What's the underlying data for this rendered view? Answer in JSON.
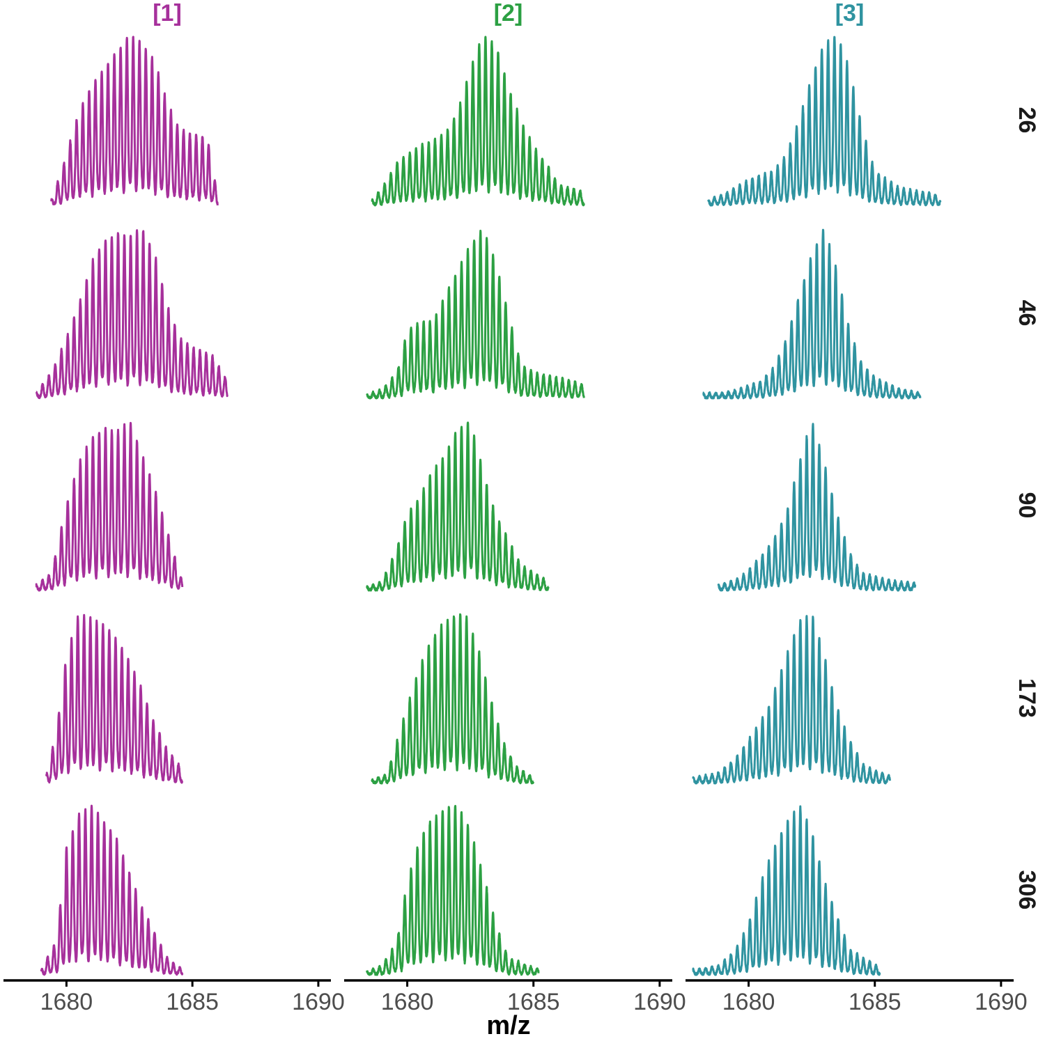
{
  "chart_data": {
    "type": "line",
    "xlabel": "m/z",
    "ylabel": "",
    "xlim": [
      1677.5,
      1690.5
    ],
    "x_ticks": [
      1680,
      1685,
      1690
    ],
    "x_tick_labels": [
      "1680",
      "1685",
      "1690"
    ],
    "grid": false,
    "legend": "none",
    "columns": [
      {
        "label": "[1]",
        "color": "#A6309B"
      },
      {
        "label": "[2]",
        "color": "#2CA043"
      },
      {
        "label": "[3]",
        "color": "#2F93A0"
      }
    ],
    "rows": [
      {
        "label": "26"
      },
      {
        "label": "46"
      },
      {
        "label": "90"
      },
      {
        "label": "173"
      },
      {
        "label": "306"
      }
    ],
    "panels": [
      {
        "column": "[1]",
        "row": "26",
        "x_range": [
          1679.4,
          1686.0
        ],
        "peak_spacing": 0.25,
        "envelope": [
          [
            1679.4,
            0.03
          ],
          [
            1679.8,
            0.2
          ],
          [
            1680.5,
            0.55
          ],
          [
            1681.0,
            0.7
          ],
          [
            1681.5,
            0.8
          ],
          [
            1682.0,
            0.9
          ],
          [
            1682.5,
            1.0
          ],
          [
            1683.0,
            0.95
          ],
          [
            1683.5,
            0.85
          ],
          [
            1684.0,
            0.6
          ],
          [
            1684.5,
            0.45
          ],
          [
            1685.0,
            0.42
          ],
          [
            1685.6,
            0.4
          ],
          [
            1686.0,
            0.05
          ]
        ]
      },
      {
        "column": "[1]",
        "row": "46",
        "x_range": [
          1678.8,
          1686.4
        ],
        "peak_spacing": 0.25,
        "envelope": [
          [
            1678.8,
            0.03
          ],
          [
            1679.4,
            0.15
          ],
          [
            1680.0,
            0.35
          ],
          [
            1680.5,
            0.55
          ],
          [
            1681.0,
            0.8
          ],
          [
            1681.5,
            0.92
          ],
          [
            1682.0,
            0.97
          ],
          [
            1682.5,
            0.95
          ],
          [
            1683.0,
            1.0
          ],
          [
            1683.5,
            0.85
          ],
          [
            1684.0,
            0.55
          ],
          [
            1684.5,
            0.35
          ],
          [
            1685.0,
            0.3
          ],
          [
            1685.8,
            0.25
          ],
          [
            1686.4,
            0.1
          ]
        ]
      },
      {
        "column": "[1]",
        "row": "90",
        "x_range": [
          1678.8,
          1684.6
        ],
        "peak_spacing": 0.25,
        "envelope": [
          [
            1678.8,
            0.03
          ],
          [
            1679.4,
            0.1
          ],
          [
            1680.0,
            0.5
          ],
          [
            1680.5,
            0.75
          ],
          [
            1681.0,
            0.9
          ],
          [
            1681.5,
            0.95
          ],
          [
            1682.0,
            0.93
          ],
          [
            1682.5,
            1.0
          ],
          [
            1683.0,
            0.8
          ],
          [
            1683.5,
            0.6
          ],
          [
            1684.0,
            0.35
          ],
          [
            1684.6,
            0.05
          ]
        ]
      },
      {
        "column": "[1]",
        "row": "173",
        "x_range": [
          1679.2,
          1684.6
        ],
        "peak_spacing": 0.25,
        "envelope": [
          [
            1679.2,
            0.05
          ],
          [
            1679.6,
            0.3
          ],
          [
            1680.0,
            0.75
          ],
          [
            1680.5,
            1.0
          ],
          [
            1681.0,
            0.97
          ],
          [
            1681.5,
            0.93
          ],
          [
            1682.0,
            0.85
          ],
          [
            1682.5,
            0.72
          ],
          [
            1683.0,
            0.55
          ],
          [
            1683.5,
            0.35
          ],
          [
            1684.0,
            0.2
          ],
          [
            1684.6,
            0.08
          ]
        ]
      },
      {
        "column": "[1]",
        "row": "306",
        "x_range": [
          1679.0,
          1684.6
        ],
        "peak_spacing": 0.25,
        "envelope": [
          [
            1679.0,
            0.03
          ],
          [
            1679.6,
            0.2
          ],
          [
            1680.0,
            0.75
          ],
          [
            1680.5,
            0.95
          ],
          [
            1681.0,
            1.0
          ],
          [
            1681.5,
            0.9
          ],
          [
            1682.0,
            0.8
          ],
          [
            1682.5,
            0.6
          ],
          [
            1683.0,
            0.4
          ],
          [
            1683.5,
            0.25
          ],
          [
            1684.0,
            0.1
          ],
          [
            1684.6,
            0.03
          ]
        ]
      },
      {
        "column": "[2]",
        "row": "26",
        "x_range": [
          1678.6,
          1687.0
        ],
        "peak_spacing": 0.25,
        "envelope": [
          [
            1678.6,
            0.03
          ],
          [
            1679.0,
            0.1
          ],
          [
            1679.6,
            0.25
          ],
          [
            1680.0,
            0.3
          ],
          [
            1680.5,
            0.35
          ],
          [
            1681.0,
            0.38
          ],
          [
            1681.5,
            0.42
          ],
          [
            1682.0,
            0.55
          ],
          [
            1682.5,
            0.8
          ],
          [
            1683.0,
            1.0
          ],
          [
            1683.5,
            0.95
          ],
          [
            1684.0,
            0.7
          ],
          [
            1684.5,
            0.5
          ],
          [
            1685.0,
            0.35
          ],
          [
            1685.5,
            0.25
          ],
          [
            1686.0,
            0.12
          ],
          [
            1687.0,
            0.08
          ]
        ]
      },
      {
        "column": "[2]",
        "row": "46",
        "x_range": [
          1678.4,
          1687.0
        ],
        "peak_spacing": 0.25,
        "envelope": [
          [
            1678.4,
            0.02
          ],
          [
            1679.0,
            0.05
          ],
          [
            1679.6,
            0.15
          ],
          [
            1680.0,
            0.4
          ],
          [
            1680.5,
            0.45
          ],
          [
            1681.0,
            0.45
          ],
          [
            1681.5,
            0.6
          ],
          [
            1682.0,
            0.75
          ],
          [
            1682.5,
            0.9
          ],
          [
            1683.0,
            1.0
          ],
          [
            1683.5,
            0.8
          ],
          [
            1684.0,
            0.5
          ],
          [
            1684.5,
            0.2
          ],
          [
            1685.0,
            0.15
          ],
          [
            1686.0,
            0.12
          ],
          [
            1687.0,
            0.08
          ]
        ]
      },
      {
        "column": "[2]",
        "row": "90",
        "x_range": [
          1678.4,
          1685.6
        ],
        "peak_spacing": 0.25,
        "envelope": [
          [
            1678.4,
            0.02
          ],
          [
            1679.0,
            0.05
          ],
          [
            1679.6,
            0.25
          ],
          [
            1680.0,
            0.45
          ],
          [
            1680.5,
            0.55
          ],
          [
            1681.0,
            0.7
          ],
          [
            1681.5,
            0.8
          ],
          [
            1682.0,
            0.95
          ],
          [
            1682.5,
            1.0
          ],
          [
            1683.0,
            0.7
          ],
          [
            1683.5,
            0.45
          ],
          [
            1684.0,
            0.3
          ],
          [
            1684.5,
            0.15
          ],
          [
            1685.6,
            0.05
          ]
        ]
      },
      {
        "column": "[2]",
        "row": "173",
        "x_range": [
          1678.6,
          1685.0
        ],
        "peak_spacing": 0.25,
        "envelope": [
          [
            1678.6,
            0.02
          ],
          [
            1679.2,
            0.05
          ],
          [
            1679.8,
            0.35
          ],
          [
            1680.3,
            0.6
          ],
          [
            1680.8,
            0.8
          ],
          [
            1681.3,
            0.92
          ],
          [
            1681.8,
            0.98
          ],
          [
            1682.3,
            1.0
          ],
          [
            1682.8,
            0.8
          ],
          [
            1683.3,
            0.5
          ],
          [
            1683.8,
            0.25
          ],
          [
            1684.3,
            0.1
          ],
          [
            1685.0,
            0.03
          ]
        ]
      },
      {
        "column": "[2]",
        "row": "306",
        "x_range": [
          1678.4,
          1685.2
        ],
        "peak_spacing": 0.25,
        "envelope": [
          [
            1678.4,
            0.02
          ],
          [
            1679.0,
            0.05
          ],
          [
            1679.6,
            0.2
          ],
          [
            1680.0,
            0.55
          ],
          [
            1680.5,
            0.8
          ],
          [
            1681.0,
            0.92
          ],
          [
            1681.5,
            0.98
          ],
          [
            1682.0,
            1.0
          ],
          [
            1682.5,
            0.85
          ],
          [
            1683.0,
            0.6
          ],
          [
            1683.5,
            0.3
          ],
          [
            1684.0,
            0.1
          ],
          [
            1685.2,
            0.03
          ]
        ]
      },
      {
        "column": "[3]",
        "row": "26",
        "x_range": [
          1678.4,
          1687.6
        ],
        "peak_spacing": 0.25,
        "envelope": [
          [
            1678.4,
            0.03
          ],
          [
            1679.2,
            0.08
          ],
          [
            1680.0,
            0.15
          ],
          [
            1680.5,
            0.18
          ],
          [
            1681.0,
            0.2
          ],
          [
            1681.5,
            0.3
          ],
          [
            1682.0,
            0.5
          ],
          [
            1682.5,
            0.75
          ],
          [
            1683.0,
            0.95
          ],
          [
            1683.5,
            1.0
          ],
          [
            1684.0,
            0.8
          ],
          [
            1684.5,
            0.45
          ],
          [
            1685.0,
            0.2
          ],
          [
            1686.0,
            0.1
          ],
          [
            1687.6,
            0.06
          ]
        ]
      },
      {
        "column": "[3]",
        "row": "46",
        "x_range": [
          1678.2,
          1686.8
        ],
        "peak_spacing": 0.25,
        "envelope": [
          [
            1678.2,
            0.03
          ],
          [
            1679.0,
            0.03
          ],
          [
            1679.8,
            0.06
          ],
          [
            1680.5,
            0.1
          ],
          [
            1681.0,
            0.18
          ],
          [
            1681.5,
            0.35
          ],
          [
            1682.0,
            0.6
          ],
          [
            1682.5,
            0.85
          ],
          [
            1683.0,
            1.0
          ],
          [
            1683.5,
            0.75
          ],
          [
            1684.0,
            0.4
          ],
          [
            1684.5,
            0.2
          ],
          [
            1685.0,
            0.12
          ],
          [
            1686.0,
            0.05
          ],
          [
            1686.8,
            0.03
          ]
        ]
      },
      {
        "column": "[3]",
        "row": "90",
        "x_range": [
          1678.8,
          1686.6
        ],
        "peak_spacing": 0.25,
        "envelope": [
          [
            1678.8,
            0.03
          ],
          [
            1679.5,
            0.06
          ],
          [
            1680.0,
            0.12
          ],
          [
            1680.5,
            0.2
          ],
          [
            1681.0,
            0.3
          ],
          [
            1681.5,
            0.45
          ],
          [
            1682.0,
            0.75
          ],
          [
            1682.5,
            1.0
          ],
          [
            1683.0,
            0.75
          ],
          [
            1683.5,
            0.45
          ],
          [
            1684.0,
            0.22
          ],
          [
            1684.5,
            0.1
          ],
          [
            1685.5,
            0.06
          ],
          [
            1686.6,
            0.04
          ]
        ]
      },
      {
        "column": "[3]",
        "row": "173",
        "x_range": [
          1677.8,
          1685.6
        ],
        "peak_spacing": 0.25,
        "envelope": [
          [
            1677.8,
            0.03
          ],
          [
            1678.8,
            0.06
          ],
          [
            1679.5,
            0.15
          ],
          [
            1680.2,
            0.3
          ],
          [
            1680.8,
            0.45
          ],
          [
            1681.5,
            0.75
          ],
          [
            1682.0,
            0.95
          ],
          [
            1682.5,
            1.0
          ],
          [
            1683.0,
            0.75
          ],
          [
            1683.5,
            0.45
          ],
          [
            1684.0,
            0.25
          ],
          [
            1684.6,
            0.1
          ],
          [
            1685.6,
            0.04
          ]
        ]
      },
      {
        "column": "[3]",
        "row": "306",
        "x_range": [
          1677.8,
          1685.2
        ],
        "peak_spacing": 0.25,
        "envelope": [
          [
            1677.8,
            0.03
          ],
          [
            1678.8,
            0.05
          ],
          [
            1679.5,
            0.15
          ],
          [
            1680.0,
            0.3
          ],
          [
            1680.5,
            0.55
          ],
          [
            1681.0,
            0.75
          ],
          [
            1681.5,
            0.9
          ],
          [
            1682.0,
            1.0
          ],
          [
            1682.5,
            0.85
          ],
          [
            1683.0,
            0.55
          ],
          [
            1683.5,
            0.35
          ],
          [
            1684.0,
            0.15
          ],
          [
            1685.2,
            0.04
          ]
        ]
      }
    ]
  }
}
